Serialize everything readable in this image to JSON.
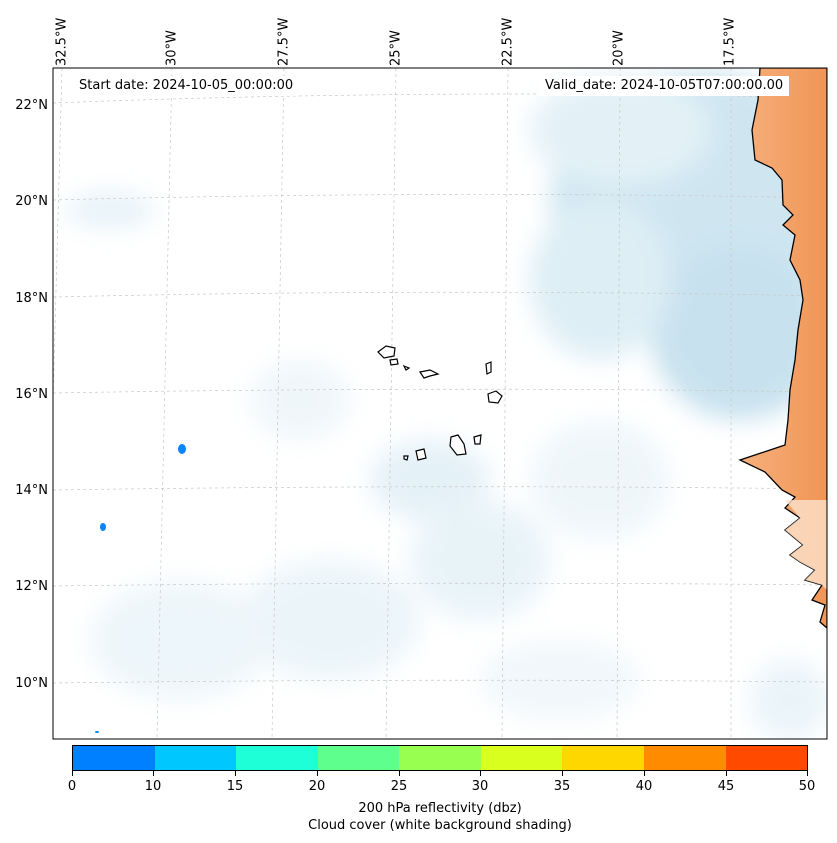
{
  "map": {
    "start_date": "Start date: 2024-10-05_00:00:00",
    "valid_date": "Valid_date: 2024-10-05T07:00:00.00",
    "lon_labels": [
      "32.5°W",
      "30°W",
      "27.5°W",
      "25°W",
      "22.5°W",
      "20°W",
      "17.5°W"
    ],
    "lat_labels": [
      "22°N",
      "20°N",
      "18°N",
      "16°N",
      "14°N",
      "12°N",
      "10°N"
    ],
    "land_color": "#f4a468",
    "cloud_color": "#b9dcea",
    "echo_color": "#0a84ff"
  },
  "colorbar": {
    "ticks": [
      "0",
      "10",
      "15",
      "20",
      "25",
      "30",
      "35",
      "40",
      "45",
      "50"
    ],
    "colors": [
      "#0080ff",
      "#00c8ff",
      "#1effd8",
      "#5eff8c",
      "#98ff50",
      "#d8ff1e",
      "#ffd700",
      "#ff8c00",
      "#ff4a00"
    ],
    "title_line1": "200 hPa reflectivity (dbz)",
    "title_line2": "Cloud cover (white background shading)"
  }
}
